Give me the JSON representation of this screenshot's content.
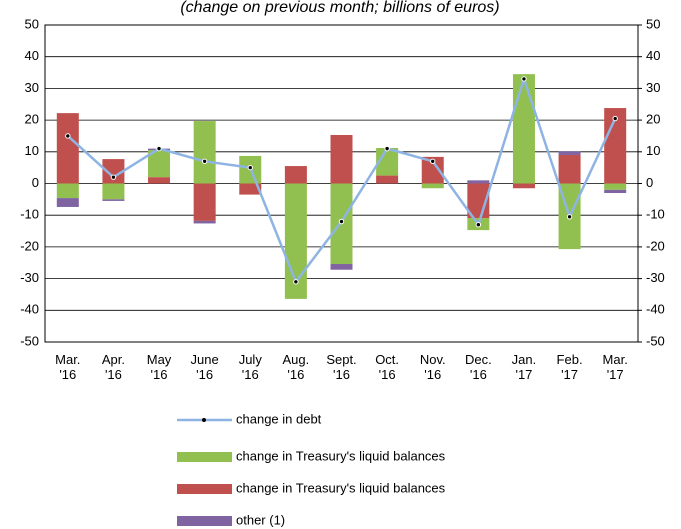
{
  "chart_data": {
    "type": "bar",
    "title": "(change on previous month; billions of euros)",
    "categories": [
      "Mar.\n'16",
      "Apr.\n'16",
      "May\n'16",
      "June\n'16",
      "July\n'16",
      "Aug.\n'16",
      "Sept.\n'16",
      "Oct.\n'16",
      "Nov.\n'16",
      "Dec.\n'16",
      "Jan.\n'17",
      "Feb.\n'17",
      "Mar.\n'17"
    ],
    "series": [
      {
        "name": "change in debt",
        "type": "line",
        "color": "#8eb4e3",
        "values": [
          15,
          2,
          11,
          7,
          5,
          -31,
          -12,
          11,
          7,
          -13,
          33,
          -10.5,
          20.5
        ]
      },
      {
        "name": "change in Treasury's liquid balances",
        "type": "bar",
        "color": "#92c050",
        "values": [
          -4.6,
          -5,
          8.5,
          19.7,
          8.7,
          -36.4,
          -25.4,
          8.7,
          -1.5,
          -3.8,
          34.5,
          -20.7,
          -2
        ]
      },
      {
        "name": "change in Treasury's liquid balances",
        "type": "bar",
        "color": "#c0504d",
        "values": [
          22.2,
          7.7,
          2,
          -11.8,
          -3.5,
          5.5,
          15.3,
          2.5,
          8.4,
          -10.9,
          -1.5,
          9,
          23.8
        ]
      },
      {
        "name": "other (1)",
        "type": "bar",
        "color": "#8064a2",
        "values": [
          -2.8,
          -0.5,
          0.5,
          -0.8,
          0,
          0,
          -1.8,
          0,
          0,
          1,
          0,
          1.2,
          -1
        ]
      }
    ],
    "ylim": [
      -50,
      50
    ],
    "yticks": [
      -50,
      -40,
      -30,
      -20,
      -10,
      0,
      10,
      20,
      30,
      40,
      50
    ],
    "y2lim": [
      -50,
      50
    ],
    "y2ticks": [
      -50,
      -40,
      -30,
      -20,
      -10,
      0,
      10,
      20,
      30,
      40,
      50
    ],
    "grid": true
  }
}
